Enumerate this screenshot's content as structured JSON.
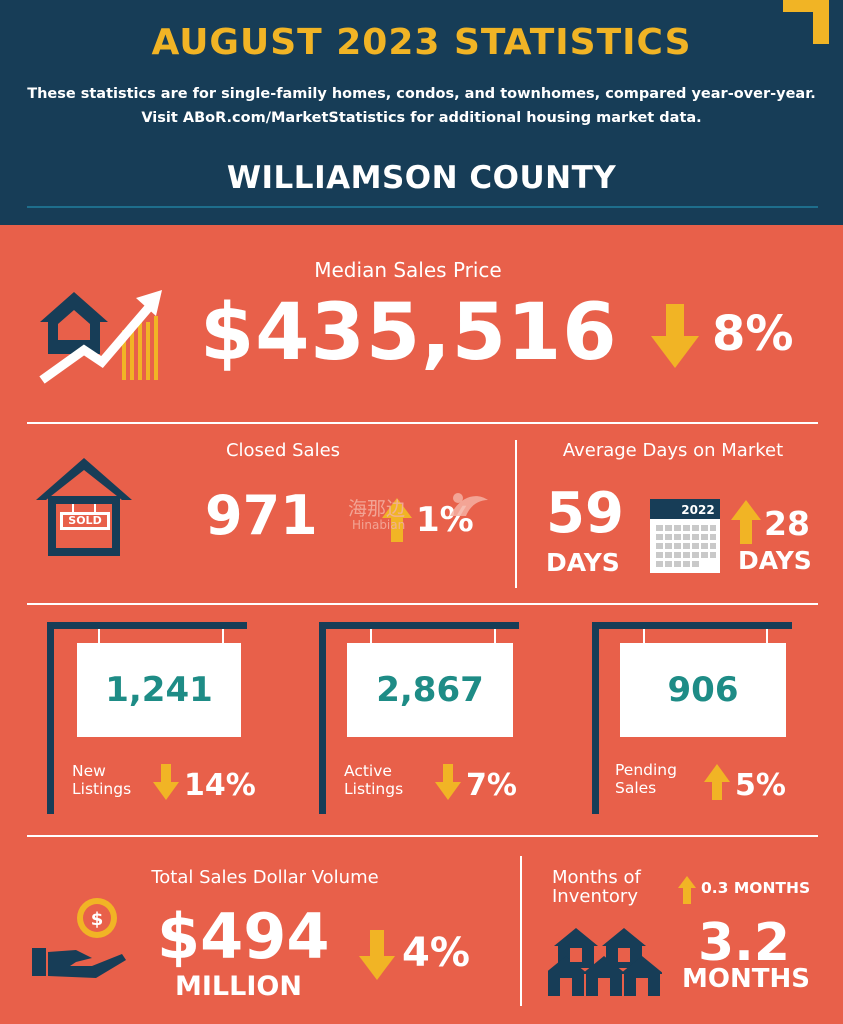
{
  "header": {
    "title": "AUGUST 2023 STATISTICS",
    "subtitle_line1": "These statistics are for single-family homes, condos, and townhomes, compared year-over-year.",
    "subtitle_line2": "Visit ABoR.com/MarketStatistics for additional housing market data.",
    "county": "WILLIAMSON COUNTY"
  },
  "median_price": {
    "label": "Median Sales Price",
    "value": "$435,516",
    "change": "8%",
    "direction": "down"
  },
  "closed_sales": {
    "label": "Closed Sales",
    "value": "971",
    "change": "1%",
    "direction": "up",
    "sign_text": "SOLD"
  },
  "days_on_market": {
    "label": "Average Days on Market",
    "value": "59",
    "value_unit": "DAYS",
    "calendar_year": "2022",
    "change": "28",
    "change_unit": "DAYS",
    "direction": "up"
  },
  "listings": [
    {
      "value": "1,241",
      "label_line1": "New",
      "label_line2": "Listings",
      "change": "14%",
      "direction": "down"
    },
    {
      "value": "2,867",
      "label_line1": "Active",
      "label_line2": "Listings",
      "change": "7%",
      "direction": "down"
    },
    {
      "value": "906",
      "label_line1": "Pending",
      "label_line2": "Sales",
      "change": "5%",
      "direction": "up"
    }
  ],
  "volume": {
    "label": "Total Sales Dollar Volume",
    "value": "$494",
    "unit": "MILLION",
    "change": "4%",
    "direction": "down"
  },
  "inventory": {
    "label_line1": "Months of",
    "label_line2": "Inventory",
    "change": "0.3 MONTHS",
    "direction": "up",
    "value": "3.2",
    "unit": "MONTHS"
  },
  "watermark": {
    "cn": "海那边",
    "en": "Hinabian"
  },
  "colors": {
    "navy": "#173D57",
    "gold": "#F1B425",
    "coral": "#E8604A",
    "teal": "#1E8C86",
    "white": "#FFFFFF"
  }
}
